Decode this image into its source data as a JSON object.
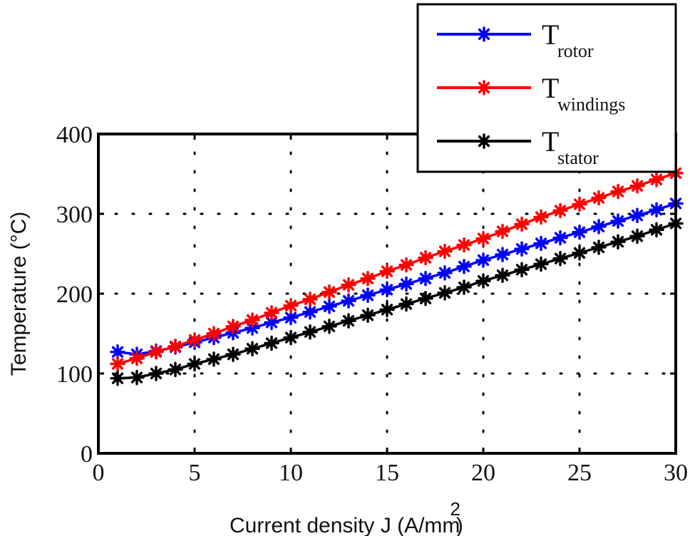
{
  "chart_data": {
    "type": "line",
    "title": "",
    "xlabel": "Current density J (A/mm",
    "xlabel_superscript": "2",
    "xlabel_suffix": ")",
    "ylabel": "Temperature (°C)",
    "xlim": [
      0,
      30
    ],
    "ylim": [
      0,
      400
    ],
    "xticks": [
      0,
      5,
      10,
      15,
      20,
      25,
      30
    ],
    "yticks": [
      0,
      100,
      200,
      300,
      400
    ],
    "xtick_labels": [
      "0",
      "5",
      "10",
      "15",
      "20",
      "25",
      "30"
    ],
    "ytick_labels": [
      "0",
      "100",
      "200",
      "300",
      "400"
    ],
    "grid": true,
    "legend_position": "top-right",
    "marker": "asterisk",
    "x": [
      1,
      2,
      3,
      4,
      5,
      6,
      7,
      8,
      9,
      10,
      11,
      12,
      13,
      14,
      15,
      16,
      17,
      18,
      19,
      20,
      21,
      22,
      23,
      24,
      25,
      26,
      27,
      28,
      29,
      30
    ],
    "series": [
      {
        "name": "T",
        "subscript": "rotor",
        "color": "#0000ff",
        "values": [
          127,
          124,
          128,
          133,
          139,
          145,
          151,
          157,
          164,
          170,
          177,
          184,
          191,
          198,
          205,
          212,
          219,
          226,
          234,
          242,
          249,
          256,
          263,
          270,
          277,
          284,
          291,
          298,
          305,
          313
        ]
      },
      {
        "name": "T",
        "subscript": "windings",
        "color": "#ff0000",
        "values": [
          112,
          119,
          127,
          134,
          142,
          150,
          159,
          167,
          176,
          185,
          193,
          202,
          211,
          219,
          228,
          236,
          245,
          253,
          261,
          269,
          278,
          287,
          296,
          304,
          312,
          320,
          328,
          335,
          343,
          351
        ]
      },
      {
        "name": "T",
        "subscript": "stator",
        "color": "#000000",
        "values": [
          94,
          95,
          100,
          105,
          112,
          118,
          124,
          131,
          138,
          145,
          152,
          159,
          166,
          173,
          180,
          187,
          194,
          201,
          208,
          216,
          223,
          230,
          237,
          244,
          251,
          258,
          265,
          272,
          280,
          288
        ]
      }
    ]
  }
}
